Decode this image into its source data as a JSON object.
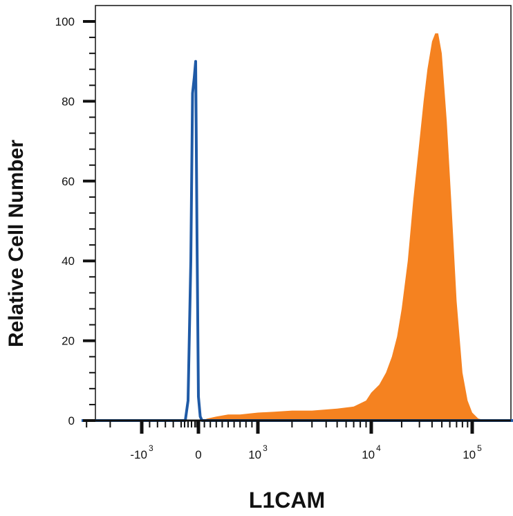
{
  "chart_data": {
    "type": "area",
    "xlabel": "L1CAM",
    "ylabel": "Relative Cell Number",
    "xscale": "biexponential",
    "ylim": [
      0,
      100
    ],
    "xlim": [
      -2000,
      160000
    ],
    "yticks": [
      {
        "value": 0,
        "label": "0"
      },
      {
        "value": 20,
        "label": "20"
      },
      {
        "value": 40,
        "label": "40"
      },
      {
        "value": 60,
        "label": "60"
      },
      {
        "value": 80,
        "label": "80"
      },
      {
        "value": 100,
        "label": "100"
      }
    ],
    "xticks": [
      {
        "value": -1000,
        "base": "-10",
        "exp": "3"
      },
      {
        "value": 0,
        "base": "0",
        "exp": ""
      },
      {
        "value": 1000,
        "base": "10",
        "exp": "3"
      },
      {
        "value": 10000,
        "base": "10",
        "exp": "4"
      },
      {
        "value": 100000,
        "base": "10",
        "exp": "5"
      }
    ],
    "grid": false,
    "legend": "none",
    "series": [
      {
        "color": "#f58220",
        "style": "filled",
        "x": [
          50,
          150,
          300,
          500,
          700,
          1000,
          1400,
          2000,
          3000,
          5000,
          7000,
          9000,
          10000,
          12000,
          14000,
          16000,
          18000,
          20000,
          23000,
          26000,
          30000,
          33000,
          36000,
          40000,
          43000,
          46000,
          50000,
          56000,
          62000,
          70000,
          80000,
          90000,
          100000,
          110000,
          125000
        ],
        "values": [
          0,
          0.5,
          1,
          1.5,
          1.5,
          2,
          2.2,
          2.5,
          2.5,
          3,
          3.5,
          5,
          7,
          9,
          12,
          16,
          21,
          28,
          40,
          55,
          70,
          80,
          88,
          95,
          97,
          97,
          92,
          75,
          55,
          30,
          12,
          5,
          2,
          0.5,
          0
        ]
      },
      {
        "color": "#1f5aa6",
        "style": "line",
        "x": [
          -380,
          -300,
          -220,
          -170,
          -120,
          -80,
          -40,
          0,
          30,
          60
        ],
        "values": [
          0,
          5,
          40,
          82,
          86,
          90,
          45,
          6,
          1,
          0
        ]
      }
    ]
  }
}
